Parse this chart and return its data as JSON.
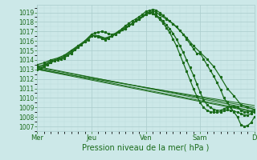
{
  "title": "",
  "xlabel": "Pression niveau de la mer( hPa )",
  "ylabel": "",
  "ylim": [
    1006.5,
    1019.8
  ],
  "yticks": [
    1007,
    1008,
    1009,
    1010,
    1011,
    1012,
    1013,
    1014,
    1015,
    1016,
    1017,
    1018,
    1019
  ],
  "day_labels": [
    "Mer",
    "Jeu",
    "Ven",
    "Sam",
    "D"
  ],
  "day_positions": [
    0,
    48,
    96,
    144,
    192
  ],
  "bg_color": "#cce8e8",
  "grid_color_major": "#aacccc",
  "grid_color_minor": "#bbdddd",
  "line_color": "#1a6b1a",
  "n_hours": 193,
  "curves": [
    {
      "style": "detailed",
      "points": [
        [
          0,
          1013.0
        ],
        [
          3,
          1013.1
        ],
        [
          6,
          1013.3
        ],
        [
          9,
          1013.5
        ],
        [
          12,
          1013.7
        ],
        [
          15,
          1013.9
        ],
        [
          18,
          1014.0
        ],
        [
          21,
          1014.1
        ],
        [
          24,
          1014.2
        ],
        [
          27,
          1014.5
        ],
        [
          30,
          1014.8
        ],
        [
          33,
          1015.1
        ],
        [
          36,
          1015.4
        ],
        [
          39,
          1015.6
        ],
        [
          42,
          1015.9
        ],
        [
          45,
          1016.1
        ],
        [
          48,
          1016.5
        ],
        [
          51,
          1016.55
        ],
        [
          54,
          1016.4
        ],
        [
          57,
          1016.25
        ],
        [
          60,
          1016.1
        ],
        [
          63,
          1016.3
        ],
        [
          66,
          1016.5
        ],
        [
          69,
          1016.7
        ],
        [
          72,
          1017.0
        ],
        [
          75,
          1017.3
        ],
        [
          78,
          1017.6
        ],
        [
          81,
          1017.85
        ],
        [
          84,
          1018.1
        ],
        [
          87,
          1018.3
        ],
        [
          90,
          1018.55
        ],
        [
          93,
          1018.8
        ],
        [
          96,
          1019.1
        ],
        [
          99,
          1019.2
        ],
        [
          102,
          1019.3
        ],
        [
          105,
          1019.25
        ],
        [
          108,
          1019.0
        ],
        [
          111,
          1018.7
        ],
        [
          114,
          1018.4
        ],
        [
          117,
          1018.1
        ],
        [
          120,
          1017.8
        ],
        [
          123,
          1017.5
        ],
        [
          126,
          1017.1
        ],
        [
          129,
          1016.7
        ],
        [
          132,
          1016.2
        ],
        [
          135,
          1015.7
        ],
        [
          138,
          1015.2
        ],
        [
          141,
          1014.7
        ],
        [
          144,
          1014.7
        ],
        [
          147,
          1014.1
        ],
        [
          150,
          1013.5
        ],
        [
          153,
          1012.9
        ],
        [
          156,
          1012.3
        ],
        [
          159,
          1011.6
        ],
        [
          162,
          1010.9
        ],
        [
          165,
          1010.0
        ],
        [
          168,
          1009.5
        ],
        [
          171,
          1009.0
        ],
        [
          174,
          1008.5
        ],
        [
          177,
          1008.0
        ],
        [
          180,
          1007.2
        ],
        [
          183,
          1007.0
        ],
        [
          186,
          1007.1
        ],
        [
          189,
          1007.4
        ],
        [
          192,
          1008.0
        ]
      ]
    },
    {
      "style": "detailed",
      "points": [
        [
          0,
          1013.1
        ],
        [
          6,
          1013.4
        ],
        [
          12,
          1013.8
        ],
        [
          18,
          1014.0
        ],
        [
          24,
          1014.3
        ],
        [
          30,
          1014.7
        ],
        [
          36,
          1015.3
        ],
        [
          42,
          1015.9
        ],
        [
          48,
          1016.6
        ],
        [
          54,
          1016.5
        ],
        [
          60,
          1016.2
        ],
        [
          66,
          1016.5
        ],
        [
          72,
          1016.9
        ],
        [
          78,
          1017.3
        ],
        [
          84,
          1017.85
        ],
        [
          90,
          1018.3
        ],
        [
          96,
          1018.85
        ],
        [
          99,
          1019.05
        ],
        [
          102,
          1019.15
        ],
        [
          105,
          1019.05
        ],
        [
          108,
          1018.75
        ],
        [
          114,
          1018.3
        ],
        [
          120,
          1017.8
        ],
        [
          126,
          1017.1
        ],
        [
          132,
          1016.35
        ],
        [
          138,
          1015.5
        ],
        [
          144,
          1014.8
        ],
        [
          150,
          1014.1
        ],
        [
          156,
          1013.3
        ],
        [
          162,
          1012.2
        ],
        [
          168,
          1011.0
        ],
        [
          174,
          1010.2
        ],
        [
          180,
          1009.3
        ],
        [
          186,
          1009.0
        ],
        [
          192,
          1008.8
        ]
      ]
    },
    {
      "style": "straight",
      "points": [
        [
          0,
          1013.0
        ],
        [
          192,
          1009.2
        ]
      ]
    },
    {
      "style": "straight",
      "points": [
        [
          0,
          1013.2
        ],
        [
          192,
          1009.0
        ]
      ]
    },
    {
      "style": "straight",
      "points": [
        [
          0,
          1013.3
        ],
        [
          192,
          1008.8
        ]
      ]
    },
    {
      "style": "straight",
      "points": [
        [
          0,
          1013.1
        ],
        [
          192,
          1008.6
        ]
      ]
    },
    {
      "style": "straight",
      "points": [
        [
          0,
          1013.0
        ],
        [
          192,
          1008.5
        ]
      ]
    },
    {
      "style": "detailed",
      "points": [
        [
          0,
          1013.5
        ],
        [
          6,
          1013.7
        ],
        [
          12,
          1014.0
        ],
        [
          18,
          1014.2
        ],
        [
          24,
          1014.5
        ],
        [
          30,
          1015.0
        ],
        [
          36,
          1015.5
        ],
        [
          42,
          1016.0
        ],
        [
          48,
          1016.7
        ],
        [
          51,
          1016.85
        ],
        [
          54,
          1016.9
        ],
        [
          57,
          1017.0
        ],
        [
          60,
          1016.9
        ],
        [
          63,
          1016.75
        ],
        [
          66,
          1016.7
        ],
        [
          69,
          1016.8
        ],
        [
          72,
          1017.05
        ],
        [
          75,
          1017.2
        ],
        [
          78,
          1017.45
        ],
        [
          81,
          1017.65
        ],
        [
          84,
          1017.85
        ],
        [
          87,
          1018.1
        ],
        [
          90,
          1018.35
        ],
        [
          93,
          1018.6
        ],
        [
          96,
          1018.85
        ],
        [
          99,
          1019.05
        ],
        [
          102,
          1018.95
        ],
        [
          105,
          1018.75
        ],
        [
          108,
          1018.45
        ],
        [
          111,
          1018.1
        ],
        [
          114,
          1017.7
        ],
        [
          117,
          1017.3
        ],
        [
          120,
          1016.8
        ],
        [
          123,
          1016.2
        ],
        [
          126,
          1015.5
        ],
        [
          129,
          1014.8
        ],
        [
          132,
          1014.0
        ],
        [
          135,
          1013.2
        ],
        [
          138,
          1012.4
        ],
        [
          141,
          1011.5
        ],
        [
          144,
          1010.6
        ],
        [
          147,
          1009.8
        ],
        [
          150,
          1009.3
        ],
        [
          153,
          1009.0
        ],
        [
          156,
          1008.8
        ],
        [
          159,
          1008.7
        ],
        [
          162,
          1008.7
        ],
        [
          165,
          1008.85
        ],
        [
          168,
          1009.0
        ],
        [
          171,
          1009.1
        ],
        [
          174,
          1009.15
        ],
        [
          177,
          1009.0
        ],
        [
          180,
          1008.7
        ],
        [
          183,
          1008.55
        ],
        [
          186,
          1008.5
        ],
        [
          189,
          1008.6
        ],
        [
          192,
          1008.8
        ]
      ]
    },
    {
      "style": "detailed",
      "points": [
        [
          0,
          1013.3
        ],
        [
          6,
          1013.5
        ],
        [
          12,
          1013.9
        ],
        [
          18,
          1014.1
        ],
        [
          24,
          1014.4
        ],
        [
          30,
          1014.9
        ],
        [
          36,
          1015.4
        ],
        [
          42,
          1015.95
        ],
        [
          48,
          1016.6
        ],
        [
          54,
          1016.55
        ],
        [
          60,
          1016.3
        ],
        [
          66,
          1016.55
        ],
        [
          72,
          1016.9
        ],
        [
          78,
          1017.3
        ],
        [
          84,
          1017.8
        ],
        [
          90,
          1018.25
        ],
        [
          96,
          1018.75
        ],
        [
          99,
          1018.95
        ],
        [
          102,
          1018.85
        ],
        [
          105,
          1018.65
        ],
        [
          108,
          1018.3
        ],
        [
          111,
          1017.9
        ],
        [
          114,
          1017.4
        ],
        [
          117,
          1016.9
        ],
        [
          120,
          1016.2
        ],
        [
          123,
          1015.5
        ],
        [
          126,
          1014.6
        ],
        [
          129,
          1013.7
        ],
        [
          132,
          1012.8
        ],
        [
          135,
          1011.9
        ],
        [
          138,
          1011.0
        ],
        [
          141,
          1010.2
        ],
        [
          144,
          1009.5
        ],
        [
          147,
          1009.0
        ],
        [
          150,
          1008.7
        ],
        [
          153,
          1008.55
        ],
        [
          156,
          1008.5
        ],
        [
          159,
          1008.5
        ],
        [
          162,
          1008.55
        ],
        [
          165,
          1008.65
        ],
        [
          168,
          1008.75
        ],
        [
          171,
          1008.7
        ],
        [
          174,
          1008.6
        ],
        [
          177,
          1008.5
        ],
        [
          180,
          1008.35
        ],
        [
          183,
          1008.2
        ],
        [
          186,
          1008.2
        ],
        [
          189,
          1008.35
        ],
        [
          192,
          1008.55
        ]
      ]
    }
  ]
}
